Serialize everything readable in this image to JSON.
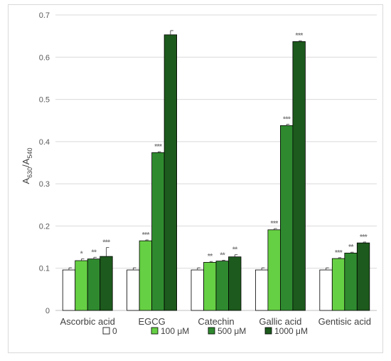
{
  "chart_data": {
    "type": "bar",
    "title": "",
    "ylabel": {
      "base": "A",
      "sub1": "630",
      "sep": "/A",
      "sub2": "540"
    },
    "xlabel": "",
    "ylim": [
      0,
      0.7
    ],
    "yticks": [
      "0",
      "0.1",
      "0.2",
      "0.3",
      "0.4",
      "0.5",
      "0.6",
      "0.7"
    ],
    "grid": true,
    "legend_position": "bottom",
    "categories": [
      "Ascorbic acid",
      "EGCG",
      "Catechin",
      "Gallic acid",
      "Gentisic acid"
    ],
    "series": [
      {
        "name": "0",
        "color": "#ffffff",
        "values": [
          0.096,
          0.096,
          0.096,
          0.096,
          0.096
        ],
        "errors": [
          0.005,
          0.005,
          0.005,
          0.005,
          0.005
        ],
        "sig": [
          "",
          "",
          "",
          "",
          ""
        ]
      },
      {
        "name": "100 μM",
        "color": "#66d044",
        "values": [
          0.118,
          0.165,
          0.114,
          0.191,
          0.123
        ],
        "errors": [
          0.004,
          0.002,
          0.002,
          0.003,
          0.002
        ],
        "sig": [
          "*",
          "***",
          "**",
          "***",
          "***"
        ]
      },
      {
        "name": "500 μM",
        "color": "#2f8a2f",
        "values": [
          0.122,
          0.374,
          0.117,
          0.438,
          0.136
        ],
        "errors": [
          0.004,
          0.002,
          0.002,
          0.003,
          0.002
        ],
        "sig": [
          "**",
          "***",
          "**",
          "***",
          "**"
        ]
      },
      {
        "name": "1000 μM",
        "color": "#1d5a1d",
        "values": [
          0.128,
          0.653,
          0.127,
          0.637,
          0.16
        ],
        "errors": [
          0.021,
          0.01,
          0.005,
          0.002,
          0.002
        ],
        "sig": [
          "***",
          "",
          "**",
          "***",
          "***"
        ]
      }
    ]
  }
}
